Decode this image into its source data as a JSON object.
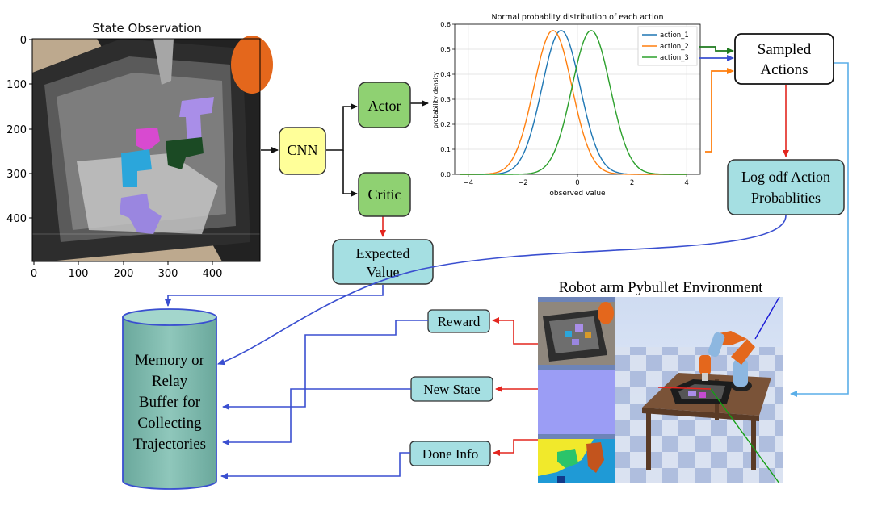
{
  "state_observation": {
    "title": "State Observation",
    "y_ticks": [
      "0",
      "100",
      "200",
      "300",
      "400"
    ],
    "x_ticks": [
      "0",
      "100",
      "200",
      "300",
      "400"
    ]
  },
  "nodes": {
    "cnn": "CNN",
    "actor": "Actor",
    "critic": "Critic",
    "expected_value": [
      "Expected",
      "Value"
    ],
    "sampled_actions": [
      "Sampled",
      "Actions"
    ],
    "log_prob": [
      "Log odf Action",
      "Probablities"
    ],
    "memory": [
      "Memory or",
      "Relay",
      "Buffer for",
      "Collecting",
      "Trajectories"
    ],
    "reward": "Reward",
    "new_state": "New State",
    "done_info": "Done Info"
  },
  "environment_title": "Robot arm Pybullet Environment",
  "chart_data": {
    "type": "line",
    "title": "Normal probablity distribution of each action",
    "xlabel": "observed value",
    "ylabel": "probability density",
    "xlim": [
      -4.5,
      4.5
    ],
    "ylim": [
      0,
      0.6
    ],
    "x_ticks": [
      -4,
      -2,
      0,
      2,
      4
    ],
    "y_ticks": [
      0.0,
      0.1,
      0.2,
      0.3,
      0.4,
      0.5,
      0.6
    ],
    "grid": true,
    "legend": "top-right",
    "series": [
      {
        "name": "action_1",
        "mean": -0.6,
        "std": 0.7,
        "peak": 0.575,
        "color": "#1f77b4"
      },
      {
        "name": "action_2",
        "mean": -0.9,
        "std": 0.7,
        "peak": 0.575,
        "color": "#ff7f0e"
      },
      {
        "name": "action_3",
        "mean": 0.5,
        "std": 0.7,
        "peak": 0.575,
        "color": "#2ca02c"
      }
    ]
  },
  "colors": {
    "cnn_fill": "#ffff99",
    "green_fill": "#8fd172",
    "teal_fill": "#a5dfe2",
    "red_arrow": "#e3261f",
    "blue_arrow": "#3a4fd0",
    "light_blue_arrow": "#5aaee8"
  }
}
